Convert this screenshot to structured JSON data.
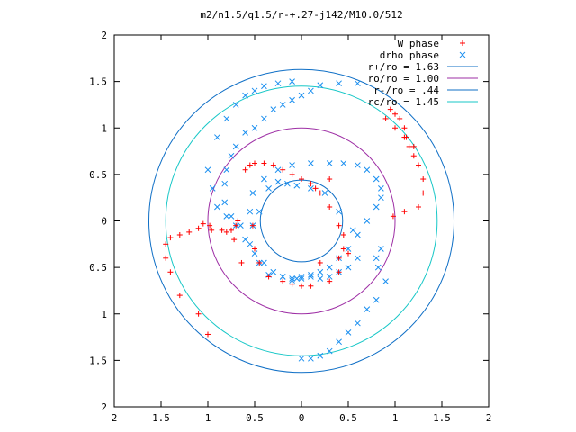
{
  "chart_data": {
    "type": "scatter",
    "title": "m2/n1.5/q1.5/r-+.27-j142/M10.0/512",
    "xlabel": "",
    "ylabel": "",
    "xlim": [
      -2,
      2
    ],
    "ylim": [
      -2,
      2
    ],
    "x_tick_values": [
      -2,
      -1.5,
      -1,
      -0.5,
      0,
      0.5,
      1,
      1.5,
      2
    ],
    "x_tick_labels": [
      "2",
      "1.5",
      "1",
      "0.5",
      "0",
      "0.5",
      "1",
      "1.5",
      "2"
    ],
    "y_tick_values": [
      2,
      1.5,
      1,
      0.5,
      0,
      -0.5,
      -1,
      -1.5,
      -2
    ],
    "y_tick_labels": [
      "2",
      "1.5",
      "1",
      "0.5",
      "0",
      "0.5",
      "1",
      "1.5",
      "2"
    ],
    "grid": false,
    "legend_position": "top-right",
    "series": [
      {
        "name": "W phase",
        "kind": "points",
        "marker": "+",
        "color": "#ff0000",
        "x": [
          -1.0,
          -1.1,
          -1.3,
          -1.4,
          -1.45,
          -1.45,
          -1.4,
          -1.3,
          -1.2,
          -1.1,
          -1.05,
          -0.98,
          -0.96,
          -0.85,
          -0.8,
          -0.75,
          -0.7,
          -0.68,
          -0.72,
          -0.64,
          -0.6,
          -0.55,
          -0.5,
          -0.4,
          -0.3,
          -0.2,
          -0.1,
          0.0,
          0.1,
          0.2,
          0.3,
          0.4,
          0.45,
          0.5,
          0.4,
          0.3,
          0.1,
          0.0,
          -0.1,
          -0.2,
          -0.35,
          -0.45,
          -0.5,
          -0.52,
          0.15,
          0.3,
          0.4,
          0.45,
          0.2,
          0.98,
          1.1,
          1.25,
          1.3,
          1.3,
          1.25,
          1.2,
          1.15,
          1.12,
          1.1,
          1.05,
          1.0,
          0.95,
          0.9,
          1.0,
          1.1,
          1.2
        ],
        "y": [
          -1.22,
          -1.0,
          -0.8,
          -0.55,
          -0.4,
          -0.25,
          -0.18,
          -0.15,
          -0.12,
          -0.08,
          -0.03,
          -0.05,
          -0.1,
          -0.1,
          -0.12,
          -0.1,
          -0.05,
          0.0,
          -0.2,
          -0.45,
          0.55,
          0.6,
          0.62,
          0.62,
          0.6,
          0.55,
          0.5,
          0.45,
          0.4,
          0.3,
          0.15,
          -0.05,
          -0.15,
          -0.35,
          -0.55,
          -0.65,
          -0.7,
          -0.7,
          -0.68,
          -0.65,
          -0.6,
          -0.45,
          -0.3,
          -0.05,
          0.35,
          0.45,
          -0.4,
          -0.3,
          -0.45,
          0.05,
          0.1,
          0.15,
          0.3,
          0.45,
          0.6,
          0.7,
          0.8,
          0.9,
          1.0,
          1.1,
          1.15,
          1.2,
          1.1,
          1.0,
          0.9,
          0.8
        ]
      },
      {
        "name": "drho phase",
        "kind": "points",
        "marker": "x",
        "color": "#1a8ff0",
        "x": [
          0.6,
          0.4,
          0.2,
          0.1,
          0.0,
          -0.1,
          -0.2,
          -0.3,
          -0.4,
          -0.5,
          -0.6,
          -0.7,
          -0.75,
          -0.8,
          -0.82,
          -0.82,
          -0.75,
          -0.65,
          -0.55,
          -0.45,
          -0.35,
          -0.2,
          -0.1,
          0.0,
          0.1,
          0.2,
          0.3,
          0.4,
          0.5,
          0.6,
          0.7,
          0.8,
          0.85,
          0.85,
          0.8,
          0.7,
          0.6,
          0.45,
          0.3,
          0.1,
          -0.1,
          -0.25,
          -0.4,
          -0.52,
          -0.55,
          -0.52,
          -0.45,
          -0.35,
          -0.25,
          -0.15,
          -0.05,
          0.1,
          0.25,
          0.4,
          0.55,
          0.6,
          0.5,
          0.4,
          0.3,
          0.2,
          0.1,
          0.0,
          -0.05,
          -0.1,
          -0.2,
          -0.3,
          -0.4,
          -0.5,
          -0.6,
          -0.7,
          -0.8,
          -0.9,
          -0.95,
          -1.0,
          -0.9,
          -0.8,
          -0.7,
          -0.6,
          -0.5,
          -0.4,
          -0.25,
          -0.1,
          0.0,
          0.1,
          0.2,
          0.3,
          0.4,
          0.5,
          0.6,
          0.7,
          0.8,
          0.9,
          0.82,
          0.8,
          0.85
        ],
        "y": [
          1.48,
          1.48,
          1.46,
          1.4,
          1.35,
          1.3,
          1.25,
          1.2,
          1.1,
          1.0,
          0.95,
          0.8,
          0.7,
          0.55,
          0.4,
          0.2,
          0.05,
          -0.05,
          -0.25,
          -0.45,
          -0.58,
          -0.6,
          -0.64,
          -0.62,
          -0.58,
          -0.55,
          -0.5,
          -0.4,
          -0.3,
          -0.15,
          0.0,
          0.15,
          0.25,
          0.35,
          0.45,
          0.55,
          0.6,
          0.62,
          0.62,
          0.62,
          0.6,
          0.55,
          0.45,
          0.3,
          0.1,
          -0.05,
          0.1,
          0.35,
          0.42,
          0.4,
          0.38,
          0.35,
          0.3,
          0.1,
          -0.1,
          -0.4,
          -0.5,
          -0.55,
          -0.6,
          -0.62,
          -0.6,
          -0.6,
          -0.62,
          -0.62,
          -0.6,
          -0.55,
          -0.45,
          -0.35,
          -0.2,
          -0.05,
          0.05,
          0.15,
          0.35,
          0.55,
          0.9,
          1.1,
          1.25,
          1.35,
          1.4,
          1.45,
          1.48,
          1.5,
          -1.48,
          -1.48,
          -1.45,
          -1.4,
          -1.3,
          -1.2,
          -1.1,
          -0.95,
          -0.85,
          -0.65,
          -0.5,
          -0.4,
          -0.3
        ]
      },
      {
        "name": "r+/ro = 1.63",
        "kind": "circle",
        "radius": 1.63,
        "color": "#0f6fc6"
      },
      {
        "name": "ro/ro = 1.00",
        "kind": "circle",
        "radius": 1.0,
        "color": "#9e2fa5"
      },
      {
        "name": "r-/ro = .44",
        "kind": "circle",
        "radius": 0.44,
        "color": "#0f6fc6"
      },
      {
        "name": "rc/ro = 1.45",
        "kind": "circle",
        "radius": 1.45,
        "color": "#17c7c7"
      }
    ]
  }
}
